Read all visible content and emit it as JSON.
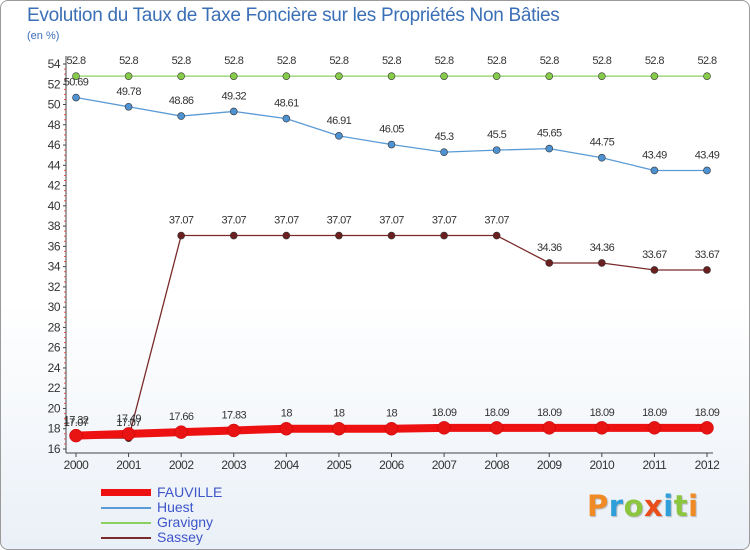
{
  "title": "Evolution du Taux de Taxe Foncière sur les Propriétés Non Bâties",
  "subtitle": "(en %)",
  "logo": {
    "letters": [
      "P",
      "r",
      "o",
      "x",
      "i",
      "t",
      "i"
    ],
    "colors": [
      "#f08a24",
      "#2e9fd8",
      "#8cc63f",
      "#e94e1b",
      "#2e9fd8",
      "#8cc63f",
      "#f08a24"
    ]
  },
  "chart_data": {
    "type": "line",
    "x": [
      "2000",
      "2001",
      "2002",
      "2003",
      "2004",
      "2005",
      "2006",
      "2007",
      "2008",
      "2009",
      "2010",
      "2011",
      "2012"
    ],
    "ylim": [
      16,
      54
    ],
    "yticks": [
      16,
      18,
      20,
      22,
      24,
      26,
      28,
      30,
      32,
      34,
      36,
      38,
      40,
      42,
      44,
      46,
      48,
      50,
      52,
      54
    ],
    "series": [
      {
        "name": "FAUVILLE",
        "color": "#ee1111",
        "values": [
          17.32,
          17.49,
          17.66,
          17.83,
          18,
          18,
          18,
          18.09,
          18.09,
          18.09,
          18.09,
          18.09,
          18.09
        ],
        "labels": [
          "17.32",
          "17.49",
          "17.66",
          "17.83",
          "18",
          "18",
          "18",
          "18.09",
          "18.09",
          "18.09",
          "18.09",
          "18.09",
          "18.09"
        ]
      },
      {
        "name": "Huest",
        "color": "#5b9bd5",
        "values": [
          50.69,
          49.78,
          48.86,
          49.32,
          48.61,
          46.91,
          46.05,
          45.3,
          45.5,
          45.65,
          44.75,
          43.49,
          43.49
        ],
        "labels": [
          "50.69",
          "49.78",
          "48.86",
          "49.32",
          "48.61",
          "46.91",
          "46.05",
          "45.3",
          "45.5",
          "45.65",
          "44.75",
          "43.49",
          "43.49"
        ]
      },
      {
        "name": "Gravigny",
        "color": "#8cd060",
        "values": [
          52.8,
          52.8,
          52.8,
          52.8,
          52.8,
          52.8,
          52.8,
          52.8,
          52.8,
          52.8,
          52.8,
          52.8,
          52.8
        ],
        "labels": [
          "52.8",
          "52.8",
          "52.8",
          "52.8",
          "52.8",
          "52.8",
          "52.8",
          "52.8",
          "52.8",
          "52.8",
          "52.8",
          "52.8",
          "52.8"
        ]
      },
      {
        "name": "Sassey",
        "color": "#7a2a2a",
        "values": [
          17.07,
          17.07,
          37.07,
          37.07,
          37.07,
          37.07,
          37.07,
          37.07,
          37.07,
          34.36,
          34.36,
          33.67,
          33.67
        ],
        "labels": [
          "17.07",
          "17.07",
          "37.07",
          "37.07",
          "37.07",
          "37.07",
          "37.07",
          "37.07",
          "37.07",
          "34.36",
          "34.36",
          "33.67",
          "33.67"
        ]
      }
    ]
  }
}
